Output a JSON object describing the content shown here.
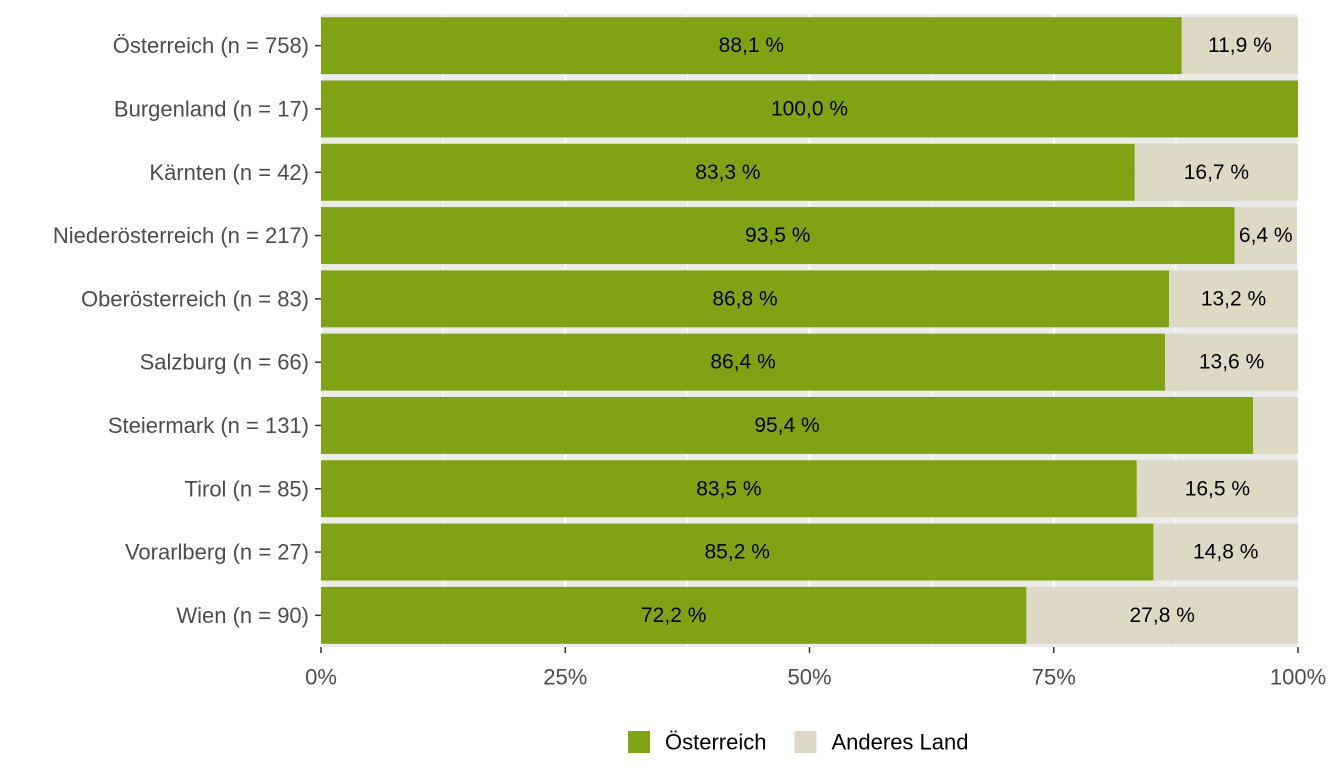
{
  "chart_data": {
    "type": "bar",
    "orientation": "horizontal",
    "stacked": true,
    "categories": [
      "Österreich (n = 758)",
      "Burgenland (n = 17)",
      "Kärnten (n = 42)",
      "Niederösterreich (n = 217)",
      "Oberösterreich (n = 83)",
      "Salzburg (n = 66)",
      "Steiermark (n = 131)",
      "Tirol (n = 85)",
      "Vorarlberg (n = 27)",
      "Wien (n = 90)"
    ],
    "series": [
      {
        "name": "Österreich",
        "color": "#80a313",
        "values": [
          88.1,
          100.0,
          83.3,
          93.5,
          86.8,
          86.4,
          95.4,
          83.5,
          85.2,
          72.2
        ],
        "labels": [
          "88,1 %",
          "100,0 %",
          "83,3 %",
          "93,5 %",
          "86,8 %",
          "86,4 %",
          "95,4 %",
          "83,5 %",
          "85,2 %",
          "72,2 %"
        ]
      },
      {
        "name": "Anderes Land",
        "color": "#ddd9c4",
        "values": [
          11.9,
          0.0,
          16.7,
          6.4,
          13.2,
          13.6,
          4.6,
          16.5,
          14.8,
          27.8
        ],
        "labels": [
          "11,9 %",
          "",
          "16,7 %",
          "6,4 %",
          "13,2 %",
          "13,6 %",
          "",
          "16,5 %",
          "14,8 %",
          "27,8 %"
        ]
      }
    ],
    "xlim": [
      0,
      100
    ],
    "x_ticks": [
      0,
      25,
      50,
      75,
      100
    ],
    "x_tick_labels": [
      "0%",
      "25%",
      "50%",
      "75%",
      "100%"
    ],
    "title": "",
    "xlabel": "",
    "ylabel": "",
    "grid": true,
    "panel_background": "#ebebeb",
    "legend_position": "bottom"
  }
}
